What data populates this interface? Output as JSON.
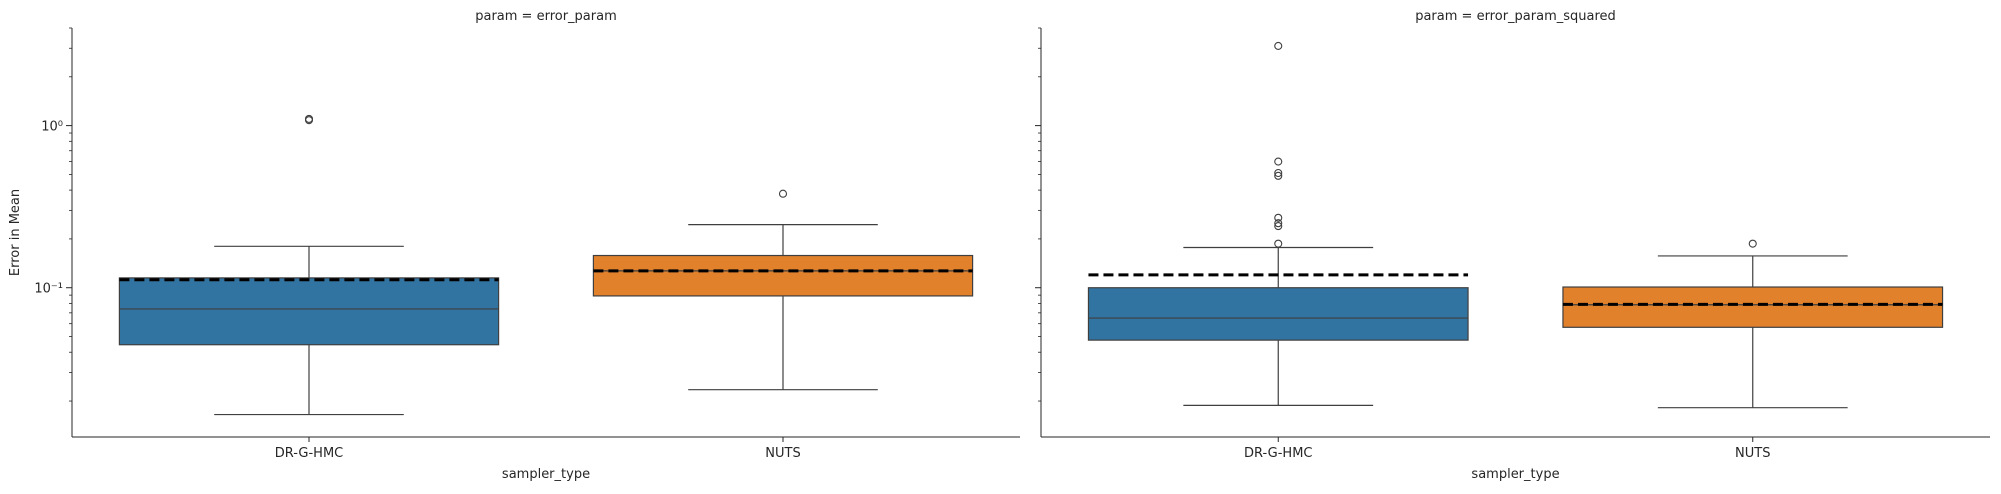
{
  "chart_data": {
    "type": "box",
    "scale": "log",
    "ylabel": "Error in Mean",
    "xlabel": "sampler_type",
    "ylim": [
      0.012,
      4.0
    ],
    "yticks": [
      {
        "value": 0.1,
        "label": "10⁻¹"
      },
      {
        "value": 1,
        "label": "10⁰"
      }
    ],
    "categories": [
      "DR-G-HMC",
      "NUTS"
    ],
    "colors": {
      "DR-G-HMC": "#3274a1",
      "NUTS": "#e1812c"
    },
    "mean_line_style": "dashed black",
    "panels": [
      {
        "title": "param = error_param",
        "boxes": [
          {
            "category": "DR-G-HMC",
            "whisker_low": 0.0165,
            "q1": 0.0445,
            "median": 0.074,
            "q3": 0.115,
            "whisker_high": 0.18,
            "mean": 0.112,
            "outliers": [
              1.08,
              1.1
            ]
          },
          {
            "category": "NUTS",
            "whisker_low": 0.0235,
            "q1": 0.089,
            "median": 0.127,
            "q3": 0.158,
            "whisker_high": 0.245,
            "mean": 0.127,
            "outliers": [
              0.38
            ]
          }
        ]
      },
      {
        "title": "param = error_param_squared",
        "boxes": [
          {
            "category": "DR-G-HMC",
            "whisker_low": 0.0188,
            "q1": 0.0475,
            "median": 0.065,
            "q3": 0.1,
            "whisker_high": 0.177,
            "mean": 0.12,
            "outliers": [
              0.187,
              0.24,
              0.25,
              0.27,
              0.49,
              0.51,
              0.6,
              3.1
            ]
          },
          {
            "category": "NUTS",
            "whisker_low": 0.0182,
            "q1": 0.057,
            "median": 0.0785,
            "q3": 0.101,
            "whisker_high": 0.157,
            "mean": 0.079,
            "outliers": [
              0.187
            ]
          }
        ]
      }
    ]
  }
}
